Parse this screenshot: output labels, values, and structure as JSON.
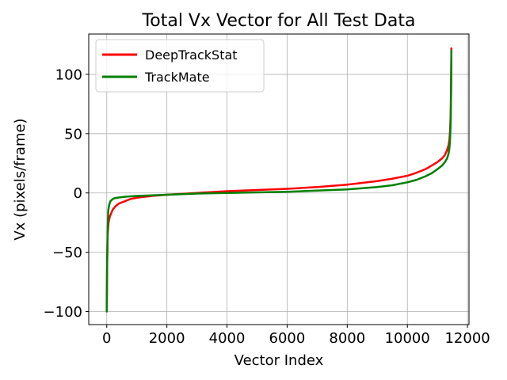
{
  "chart_data": {
    "type": "line",
    "title": "Total Vx Vector for All Test Data",
    "xlabel": "Vector Index",
    "ylabel": "Vx (pixels/frame)",
    "xlim": [
      -600,
      12050
    ],
    "ylim": [
      -111,
      134
    ],
    "xticks": [
      0,
      2000,
      4000,
      6000,
      8000,
      10000,
      12000
    ],
    "xtick_labels": [
      "0",
      "2000",
      "4000",
      "6000",
      "8000",
      "10000",
      "12000"
    ],
    "yticks": [
      -100,
      -50,
      0,
      50,
      100
    ],
    "ytick_labels": [
      "−100",
      "−50",
      "0",
      "50",
      "100"
    ],
    "grid": true,
    "legend": "top-left",
    "series": [
      {
        "name": "DeepTrackStat",
        "color": "#ff0000",
        "x": [
          0,
          10,
          30,
          60,
          100,
          150,
          200,
          300,
          400,
          600,
          800,
          1000,
          1500,
          2000,
          3000,
          4000,
          5000,
          6000,
          7000,
          7500,
          8000,
          8500,
          9000,
          9500,
          10000,
          10300,
          10600,
          10800,
          11000,
          11150,
          11250,
          11320,
          11370,
          11400,
          11420,
          11440,
          11455,
          11465
        ],
        "y": [
          -100,
          -65,
          -35,
          -25,
          -20,
          -17,
          -14,
          -11,
          -9,
          -7,
          -5,
          -4,
          -2.5,
          -1.5,
          0,
          1.5,
          2.5,
          3.5,
          5,
          6,
          7,
          8.5,
          10,
          12,
          14.5,
          17,
          20,
          23,
          26,
          29,
          32,
          36,
          40,
          45,
          52,
          65,
          90,
          122
        ]
      },
      {
        "name": "TrackMate",
        "color": "#008000",
        "x": [
          0,
          10,
          30,
          50,
          80,
          120,
          180,
          250,
          350,
          500,
          700,
          1000,
          1500,
          2000,
          3000,
          4000,
          5000,
          6000,
          7000,
          8000,
          8500,
          9000,
          9500,
          10000,
          10300,
          10600,
          10800,
          11000,
          11150,
          11250,
          11320,
          11370,
          11400,
          11420,
          11440,
          11455,
          11465
        ],
        "y": [
          -100,
          -60,
          -30,
          -15,
          -10,
          -7,
          -5.5,
          -4.5,
          -4,
          -3.5,
          -3,
          -2.5,
          -2,
          -1.5,
          -0.5,
          0,
          0.5,
          1,
          2,
          3,
          4,
          5,
          6.5,
          9,
          11,
          14,
          16.5,
          20,
          23,
          26,
          29,
          33,
          38,
          45,
          58,
          85,
          120
        ]
      }
    ]
  }
}
